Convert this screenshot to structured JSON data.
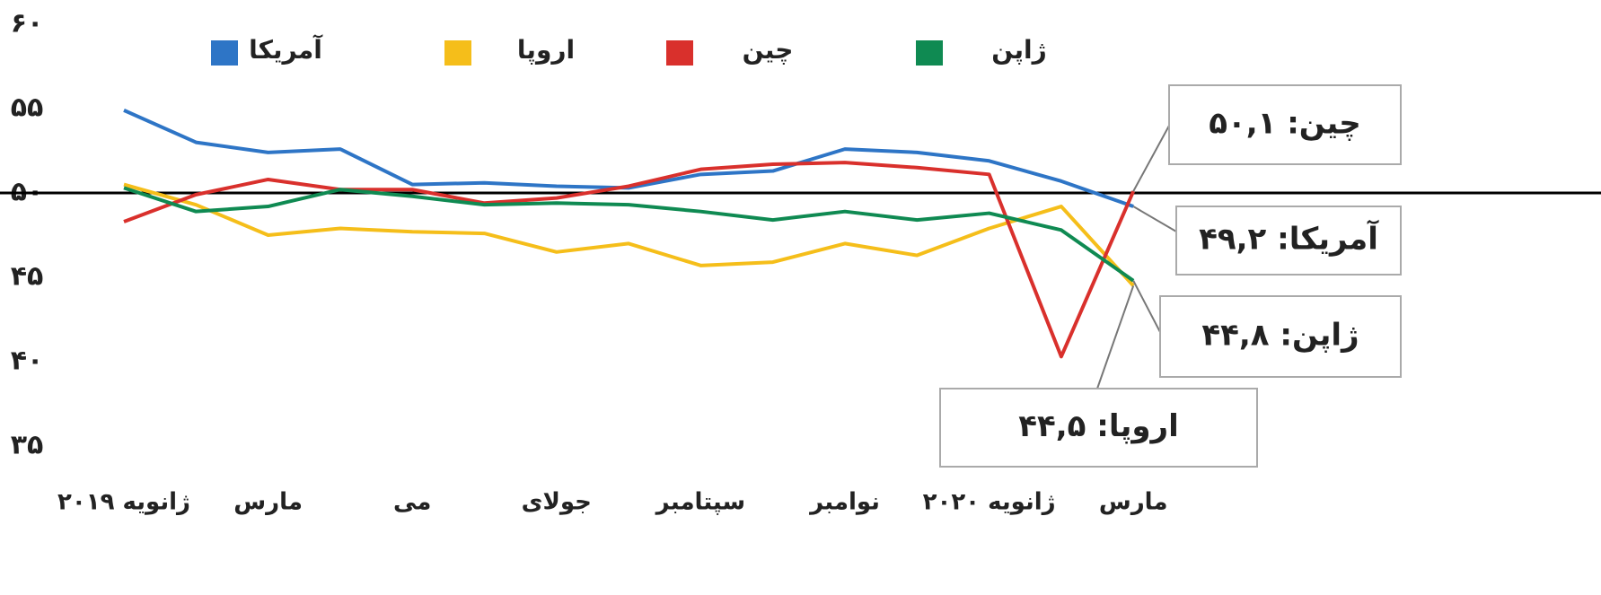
{
  "chart_data": {
    "type": "line",
    "categories": [
      "ژانویه ۲۰۱۹",
      null,
      "مارس",
      null,
      "می",
      null,
      "جولای",
      null,
      "سپتامبر",
      null,
      "نوامبر",
      null,
      "ژانویه ۲۰۲۰",
      null,
      "مارس"
    ],
    "series": [
      {
        "name": "آمریکا",
        "color": "#2e75c6",
        "values": [
          54.9,
          53.0,
          52.4,
          52.6,
          50.5,
          50.6,
          50.4,
          50.3,
          51.1,
          51.3,
          52.6,
          52.4,
          51.9,
          50.7,
          49.2
        ]
      },
      {
        "name": "اروپا",
        "color": "#f5be1a",
        "values": [
          50.5,
          49.3,
          47.5,
          47.9,
          47.7,
          47.6,
          46.5,
          47.0,
          45.7,
          45.9,
          47.0,
          46.3,
          47.9,
          49.2,
          44.5
        ]
      },
      {
        "name": "چین",
        "color": "#d9302c",
        "values": [
          48.3,
          49.9,
          50.8,
          50.2,
          50.2,
          49.4,
          49.7,
          50.4,
          51.4,
          51.7,
          51.8,
          51.5,
          51.1,
          40.3,
          50.1
        ]
      },
      {
        "name": "ژاپن",
        "color": "#0f8a52",
        "values": [
          50.3,
          48.9,
          49.2,
          50.2,
          49.8,
          49.3,
          49.4,
          49.3,
          48.9,
          48.4,
          48.9,
          48.4,
          48.8,
          47.8,
          44.8
        ]
      }
    ],
    "ylim": [
      35,
      60
    ],
    "yticks": [
      {
        "value": 60,
        "label": "۶۰"
      },
      {
        "value": 55,
        "label": "۵۵"
      },
      {
        "value": 50,
        "label": "۵۰"
      },
      {
        "value": 45,
        "label": "۴۵"
      },
      {
        "value": 40,
        "label": "۴۰"
      },
      {
        "value": 35,
        "label": "۳۵"
      }
    ],
    "reference_line": 50,
    "annotations": [
      "چین: ۵۰,۱",
      "آمریکا: ۴۹,۲",
      "ژاپن: ۴۴,۸",
      "اروپا: ۴۴,۵"
    ],
    "legend": "top"
  }
}
